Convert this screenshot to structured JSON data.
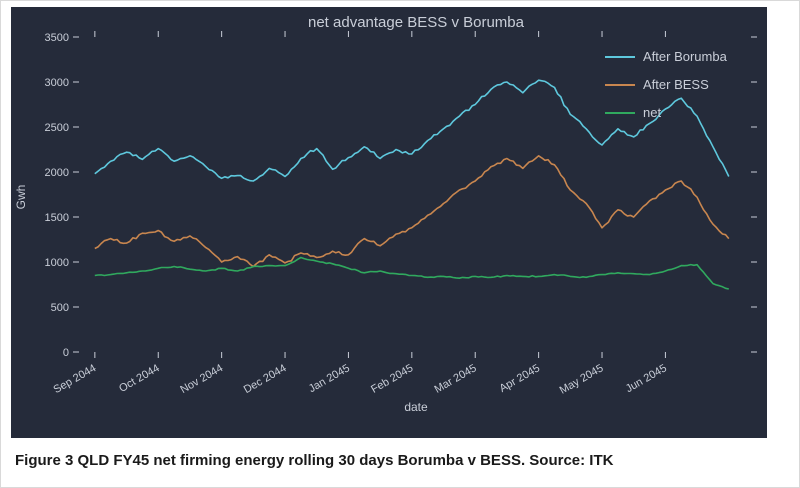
{
  "page": {
    "caption": "Figure 3 QLD FY45 net firming energy rolling 30 days Borumba v BESS. Source: ITK"
  },
  "chart_data": {
    "type": "line",
    "title": "net advantage BESS v Borumba",
    "xlabel": "date",
    "ylabel": "Gwh",
    "xlim": [
      -0.25,
      10.35
    ],
    "ylim": [
      0,
      3500
    ],
    "yticks": [
      0,
      500,
      1000,
      1500,
      2000,
      2500,
      3000,
      3500
    ],
    "xticks": [
      0,
      1,
      2,
      3,
      4,
      5,
      6,
      7,
      8,
      9
    ],
    "xtick_labels": [
      "Sep 2044",
      "Oct 2044",
      "Nov 2044",
      "Dec 2044",
      "Jan 2045",
      "Feb 2045",
      "Mar 2045",
      "Apr 2045",
      "May 2045",
      "Jun 2045"
    ],
    "x_units": "months since Sep 2044",
    "grid": false,
    "legend_position": "top-right",
    "colors": {
      "background": "#252b3a",
      "text": "#c9ced8"
    },
    "x": [
      0,
      0.25,
      0.5,
      0.75,
      1,
      1.25,
      1.5,
      1.75,
      2,
      2.25,
      2.5,
      2.75,
      3,
      3.25,
      3.5,
      3.75,
      4,
      4.25,
      4.5,
      4.75,
      5,
      5.25,
      5.5,
      5.75,
      6,
      6.25,
      6.5,
      6.75,
      7,
      7.25,
      7.5,
      7.75,
      8,
      8.25,
      8.5,
      8.75,
      9,
      9.25,
      9.5,
      9.75,
      10
    ],
    "series": [
      {
        "name": "After Borumba",
        "color": "#5ec8dd",
        "values": [
          1980,
          2120,
          2220,
          2140,
          2260,
          2120,
          2180,
          2060,
          1930,
          1960,
          1900,
          2040,
          1950,
          2150,
          2260,
          2030,
          2160,
          2280,
          2150,
          2250,
          2200,
          2350,
          2480,
          2620,
          2750,
          2920,
          3000,
          2880,
          3020,
          2940,
          2640,
          2480,
          2300,
          2480,
          2390,
          2540,
          2700,
          2820,
          2620,
          2280,
          1950
        ]
      },
      {
        "name": "After BESS",
        "color": "#c8864f",
        "values": [
          1150,
          1260,
          1210,
          1320,
          1350,
          1230,
          1290,
          1160,
          1000,
          1060,
          950,
          1080,
          990,
          1100,
          1050,
          1120,
          1080,
          1260,
          1180,
          1310,
          1380,
          1520,
          1650,
          1800,
          1900,
          2060,
          2150,
          2040,
          2180,
          2080,
          1800,
          1650,
          1380,
          1580,
          1500,
          1680,
          1800,
          1900,
          1720,
          1420,
          1260
        ]
      },
      {
        "name": "net",
        "color": "#30a95e",
        "values": [
          850,
          860,
          880,
          900,
          930,
          950,
          920,
          900,
          930,
          900,
          950,
          960,
          960,
          1050,
          1010,
          980,
          930,
          880,
          900,
          870,
          850,
          830,
          840,
          820,
          840,
          830,
          850,
          840,
          840,
          860,
          840,
          830,
          860,
          880,
          870,
          860,
          900,
          960,
          970,
          760,
          700
        ]
      }
    ]
  }
}
